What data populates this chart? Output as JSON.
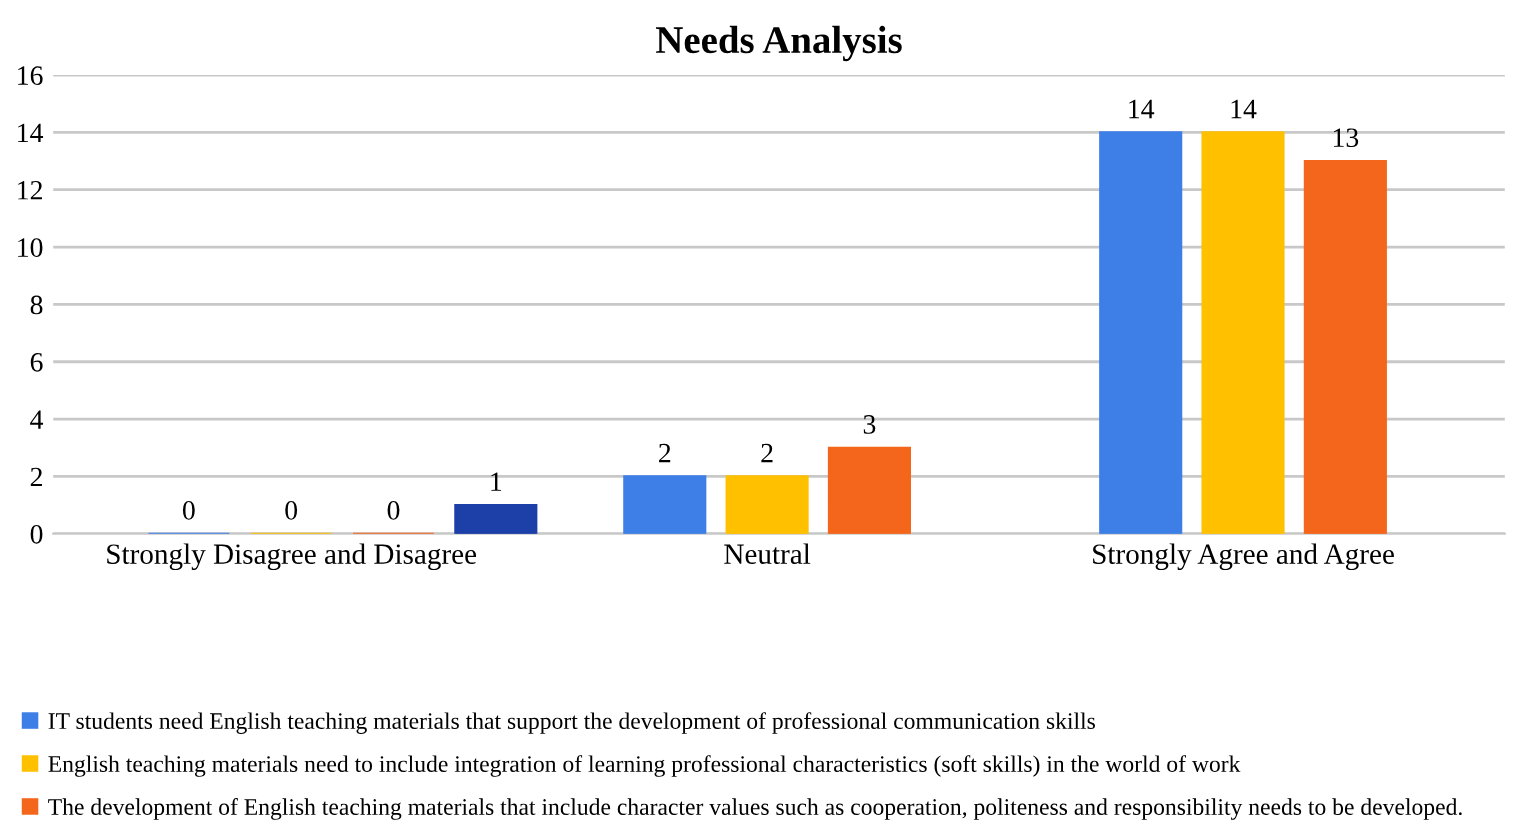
{
  "chart_data": {
    "type": "bar",
    "title": "Needs Analysis",
    "categories": [
      "Strongly Disagree and Disagree",
      "Neutral",
      "Strongly Agree and Agree"
    ],
    "series": [
      {
        "name": "IT students need English teaching materials that support the development of professional communication skills",
        "color": "#3d7fe6",
        "values": [
          0,
          2,
          14
        ]
      },
      {
        "name": "English teaching materials need to include integration of learning professional characteristics (soft skills) in the world of work",
        "color": "#ffc000",
        "values": [
          0,
          2,
          14
        ]
      },
      {
        "name": "The development of English teaching materials that include character values such as cooperation, politeness and responsibility needs to be developed.",
        "color": "#f4661b",
        "values": [
          0,
          3,
          13
        ]
      },
      {
        "color": "#1c3fa8",
        "values": [
          1,
          null,
          null
        ]
      }
    ],
    "ylim": [
      0,
      16
    ],
    "yticks": [
      0,
      2,
      4,
      6,
      8,
      10,
      12,
      14,
      16
    ],
    "grid": "y",
    "data_labels": true,
    "legend": "bottom"
  }
}
